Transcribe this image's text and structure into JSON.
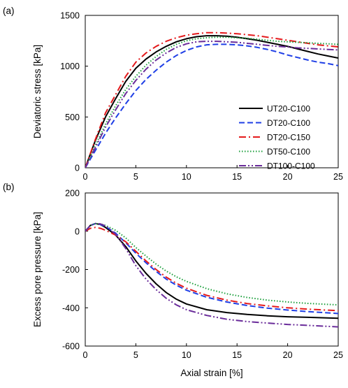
{
  "chart_data": [
    {
      "type": "line",
      "panel_label": "(a)",
      "xlabel": "",
      "ylabel": "Deviatoric stress [kPa]",
      "xlim": [
        0,
        25
      ],
      "ylim": [
        0,
        1500
      ],
      "xticks": [
        "0",
        "5",
        "10",
        "15",
        "20",
        "25"
      ],
      "yticks": [
        "0",
        "500",
        "1000",
        "1500"
      ],
      "grid": false,
      "legend": "center-right",
      "series": [
        {
          "name": "UT20-C100",
          "color": "#000000",
          "dash": "solid",
          "x": [
            0,
            1,
            2,
            3,
            4,
            5,
            6,
            7,
            8,
            9,
            10,
            11,
            12,
            13,
            14,
            15,
            16,
            17,
            18,
            19,
            20,
            21,
            22,
            23,
            24,
            25
          ],
          "y": [
            0,
            270,
            500,
            680,
            850,
            980,
            1070,
            1140,
            1195,
            1240,
            1270,
            1290,
            1300,
            1300,
            1295,
            1285,
            1270,
            1255,
            1235,
            1215,
            1195,
            1170,
            1145,
            1120,
            1100,
            1080
          ]
        },
        {
          "name": "DT20-C100",
          "color": "#1f3fe6",
          "dash": "dashed",
          "x": [
            0,
            1,
            2,
            3,
            4,
            5,
            6,
            7,
            8,
            9,
            10,
            11,
            12,
            13,
            14,
            15,
            16,
            17,
            18,
            19,
            20,
            21,
            22,
            23,
            24,
            25
          ],
          "y": [
            0,
            170,
            340,
            490,
            630,
            760,
            870,
            960,
            1040,
            1105,
            1155,
            1190,
            1210,
            1215,
            1215,
            1210,
            1200,
            1185,
            1165,
            1140,
            1110,
            1085,
            1060,
            1040,
            1025,
            1005
          ]
        },
        {
          "name": "DT20-C150",
          "color": "#e41a1c",
          "dash": "dashdot",
          "x": [
            0,
            1,
            2,
            3,
            4,
            5,
            6,
            7,
            8,
            9,
            10,
            11,
            12,
            13,
            14,
            15,
            16,
            17,
            18,
            19,
            20,
            21,
            22,
            23,
            24,
            25
          ],
          "y": [
            0,
            280,
            540,
            720,
            900,
            1040,
            1130,
            1195,
            1245,
            1280,
            1305,
            1320,
            1330,
            1330,
            1325,
            1320,
            1310,
            1300,
            1285,
            1270,
            1255,
            1240,
            1225,
            1210,
            1200,
            1190
          ]
        },
        {
          "name": "DT50-C100",
          "color": "#1a9e3a",
          "dash": "dotted",
          "x": [
            0,
            1,
            2,
            3,
            4,
            5,
            6,
            7,
            8,
            9,
            10,
            11,
            12,
            13,
            14,
            15,
            16,
            17,
            18,
            19,
            20,
            21,
            22,
            23,
            24,
            25
          ],
          "y": [
            0,
            220,
            430,
            610,
            770,
            900,
            1010,
            1095,
            1165,
            1215,
            1250,
            1270,
            1280,
            1285,
            1285,
            1280,
            1275,
            1265,
            1255,
            1245,
            1240,
            1235,
            1230,
            1225,
            1220,
            1215
          ]
        },
        {
          "name": "DT100-C100",
          "color": "#6a2c9a",
          "dash": "dashdotdot",
          "x": [
            0,
            1,
            2,
            3,
            4,
            5,
            6,
            7,
            8,
            9,
            10,
            11,
            12,
            13,
            14,
            15,
            16,
            17,
            18,
            19,
            20,
            21,
            22,
            23,
            24,
            25
          ],
          "y": [
            0,
            200,
            400,
            570,
            730,
            860,
            970,
            1060,
            1130,
            1185,
            1220,
            1240,
            1245,
            1245,
            1240,
            1235,
            1225,
            1215,
            1205,
            1195,
            1190,
            1180,
            1175,
            1170,
            1165,
            1160
          ]
        }
      ]
    },
    {
      "type": "line",
      "panel_label": "(b)",
      "xlabel": "Axial strain [%]",
      "ylabel": "Excess pore pressure [kPa]",
      "xlim": [
        0,
        25
      ],
      "ylim": [
        -600,
        200
      ],
      "xticks": [
        "0",
        "5",
        "10",
        "15",
        "20",
        "25"
      ],
      "yticks": [
        "-600",
        "-400",
        "-200",
        "0",
        "200"
      ],
      "grid": false,
      "legend": "",
      "series": [
        {
          "name": "UT20-C100",
          "color": "#000000",
          "dash": "solid",
          "x": [
            0,
            0.5,
            1,
            1.5,
            2,
            3,
            4,
            5,
            6,
            7,
            8,
            9,
            10,
            12,
            14,
            16,
            18,
            20,
            22,
            25
          ],
          "y": [
            0,
            30,
            40,
            35,
            20,
            -20,
            -80,
            -155,
            -220,
            -275,
            -320,
            -355,
            -380,
            -410,
            -425,
            -435,
            -442,
            -447,
            -450,
            -455
          ]
        },
        {
          "name": "DT20-C100",
          "color": "#1f3fe6",
          "dash": "dashed",
          "x": [
            0,
            0.5,
            1,
            1.5,
            2,
            3,
            4,
            5,
            6,
            7,
            8,
            9,
            10,
            12,
            14,
            16,
            18,
            20,
            22,
            25
          ],
          "y": [
            0,
            30,
            40,
            35,
            25,
            -10,
            -60,
            -115,
            -165,
            -210,
            -250,
            -282,
            -308,
            -345,
            -370,
            -388,
            -402,
            -412,
            -420,
            -430
          ]
        },
        {
          "name": "DT20-C150",
          "color": "#e41a1c",
          "dash": "dashdot",
          "x": [
            0,
            0.5,
            1,
            1.5,
            2,
            3,
            4,
            5,
            6,
            7,
            8,
            9,
            10,
            12,
            14,
            16,
            18,
            20,
            22,
            25
          ],
          "y": [
            0,
            15,
            20,
            15,
            5,
            -20,
            -55,
            -105,
            -155,
            -200,
            -240,
            -272,
            -298,
            -335,
            -360,
            -378,
            -390,
            -400,
            -407,
            -415
          ]
        },
        {
          "name": "DT50-C100",
          "color": "#1a9e3a",
          "dash": "dotted",
          "x": [
            0,
            0.5,
            1,
            1.5,
            2,
            3,
            4,
            5,
            6,
            7,
            8,
            9,
            10,
            12,
            14,
            16,
            18,
            20,
            22,
            25
          ],
          "y": [
            0,
            30,
            40,
            38,
            30,
            5,
            -35,
            -85,
            -130,
            -172,
            -208,
            -238,
            -262,
            -300,
            -327,
            -346,
            -360,
            -370,
            -377,
            -385
          ]
        },
        {
          "name": "DT100-C100",
          "color": "#6a2c9a",
          "dash": "dashdotdot",
          "x": [
            0,
            0.5,
            1,
            1.5,
            2,
            3,
            4,
            5,
            6,
            7,
            8,
            9,
            10,
            12,
            14,
            16,
            18,
            20,
            22,
            25
          ],
          "y": [
            0,
            30,
            40,
            38,
            28,
            -15,
            -90,
            -180,
            -250,
            -305,
            -350,
            -385,
            -410,
            -440,
            -460,
            -472,
            -480,
            -487,
            -492,
            -500
          ]
        }
      ]
    }
  ]
}
